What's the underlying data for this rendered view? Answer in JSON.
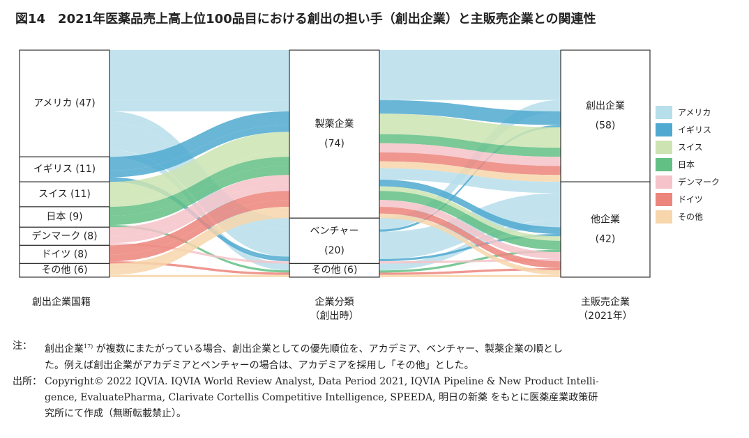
{
  "chart_data": {
    "type": "sankey",
    "title": "図14　2021年医薬品売上高上位100品目における創出の担い手（創出企業）と主販売企業との関連性",
    "countries": [
      {
        "name": "アメリカ",
        "label": "アメリカ (47)",
        "value": 47,
        "color": "#b7deeb"
      },
      {
        "name": "イギリス",
        "label": "イギリス (11)",
        "value": 11,
        "color": "#4fa9d0"
      },
      {
        "name": "スイス",
        "label": "スイス (11)",
        "value": 11,
        "color": "#cde4b2"
      },
      {
        "name": "日本",
        "label": "日本 (9)",
        "value": 9,
        "color": "#63c085"
      },
      {
        "name": "デンマーク",
        "label": "デンマーク (8)",
        "value": 8,
        "color": "#f5c3c9"
      },
      {
        "name": "ドイツ",
        "label": "ドイツ (8)",
        "value": 8,
        "color": "#ec857b"
      },
      {
        "name": "その他",
        "label": "その他 (6)",
        "value": 6,
        "color": "#f7d6ab"
      }
    ],
    "types": [
      {
        "name": "製薬企業",
        "value": 74,
        "value_label": "(74)"
      },
      {
        "name": "ベンチャー",
        "value": 20,
        "value_label": "(20)"
      },
      {
        "name": "その他",
        "value": 6,
        "value_label": "(6)"
      }
    ],
    "outcomes": [
      {
        "name": "創出企業",
        "value": 58,
        "value_label": "(58)"
      },
      {
        "name": "他企業",
        "value": 42,
        "value_label": "(42)"
      }
    ],
    "flows": [
      {
        "country": 0,
        "type": 0,
        "outcome": 0,
        "value": 22
      },
      {
        "country": 0,
        "type": 0,
        "outcome": 1,
        "value": 5
      },
      {
        "country": 0,
        "type": 1,
        "outcome": 0,
        "value": 5
      },
      {
        "country": 0,
        "type": 1,
        "outcome": 1,
        "value": 12
      },
      {
        "country": 0,
        "type": 2,
        "outcome": 1,
        "value": 3
      },
      {
        "country": 1,
        "type": 0,
        "outcome": 0,
        "value": 6
      },
      {
        "country": 1,
        "type": 0,
        "outcome": 1,
        "value": 3
      },
      {
        "country": 1,
        "type": 1,
        "outcome": 0,
        "value": 1
      },
      {
        "country": 1,
        "type": 1,
        "outcome": 1,
        "value": 1
      },
      {
        "country": 2,
        "type": 0,
        "outcome": 0,
        "value": 9
      },
      {
        "country": 2,
        "type": 0,
        "outcome": 1,
        "value": 2
      },
      {
        "country": 3,
        "type": 0,
        "outcome": 0,
        "value": 4
      },
      {
        "country": 3,
        "type": 0,
        "outcome": 1,
        "value": 4
      },
      {
        "country": 3,
        "type": 2,
        "outcome": 1,
        "value": 1
      },
      {
        "country": 4,
        "type": 0,
        "outcome": 0,
        "value": 4
      },
      {
        "country": 4,
        "type": 0,
        "outcome": 1,
        "value": 3
      },
      {
        "country": 4,
        "type": 1,
        "outcome": 1,
        "value": 1
      },
      {
        "country": 5,
        "type": 0,
        "outcome": 0,
        "value": 4
      },
      {
        "country": 5,
        "type": 0,
        "outcome": 1,
        "value": 3
      },
      {
        "country": 5,
        "type": 2,
        "outcome": 1,
        "value": 1
      },
      {
        "country": 6,
        "type": 0,
        "outcome": 0,
        "value": 3
      },
      {
        "country": 6,
        "type": 0,
        "outcome": 1,
        "value": 2
      },
      {
        "country": 6,
        "type": 2,
        "outcome": 1,
        "value": 1
      }
    ],
    "column_captions": [
      [
        "創出企業国籍"
      ],
      [
        "企業分類",
        "（創出時）"
      ],
      [
        "主販売企業",
        "（2021年）"
      ]
    ]
  },
  "notes": {
    "label": "注：",
    "line1_parts": [
      "創出企業",
      "17)",
      " が複数にまたがっている場合、創出企業としての優先順位を、アカデミア、ベンチャー、製薬企業の順とし"
    ],
    "line2": "た。例えば創出企業がアカデミアとベンチャーの場合は、アカデミアを採用し「その他」とした。"
  },
  "source": {
    "label": "出所：",
    "lines": [
      "Copyright© 2022 IQVIA. IQVIA World Review Analyst, Data Period 2021, IQVIA Pipeline & New Product Intelli-",
      "gence, EvaluatePharma, Clarivate Cortellis Competitive Intelligence, SPEEDA, 明日の新薬 をもとに医薬産業政策研",
      "究所にて作成（無断転載禁止）。"
    ]
  }
}
